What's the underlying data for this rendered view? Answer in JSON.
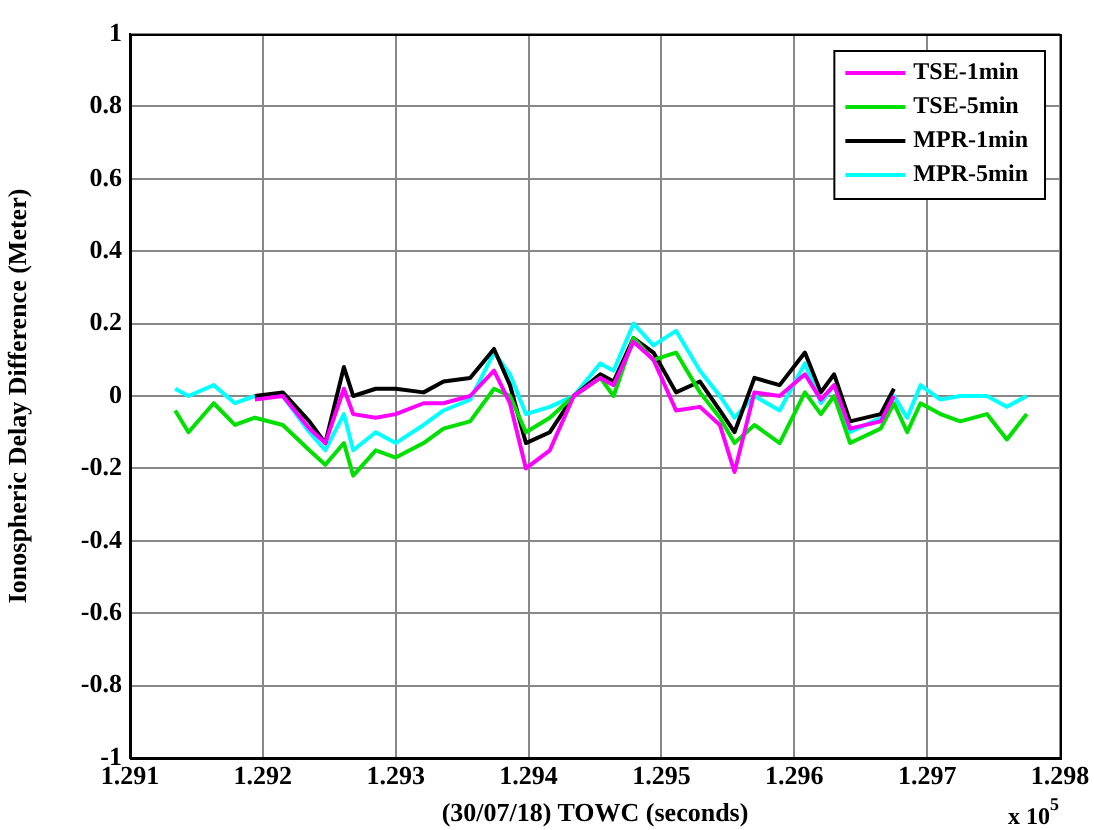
{
  "chart_data": {
    "type": "line",
    "xlabel": "(30/07/18) TOWC (seconds)",
    "ylabel": "Ionospheric Delay Difference (Meter)",
    "annotations": [
      "x 10$^{5}$"
    ],
    "x": [
      1.29134,
      1.29144,
      1.29163,
      1.29179,
      1.29194,
      1.29215,
      1.29235,
      1.29247,
      1.29261,
      1.29268,
      1.29285,
      1.293,
      1.29321,
      1.29336,
      1.29356,
      1.29374,
      1.29386,
      1.29398,
      1.29416,
      1.29434,
      1.29454,
      1.29464,
      1.29479,
      1.29494,
      1.29511,
      1.29529,
      1.29544,
      1.29555,
      1.2957,
      1.29589,
      1.29608,
      1.2962,
      1.2963,
      1.29642,
      1.29665,
      1.29675,
      1.29685,
      1.29695,
      1.2971,
      1.29725,
      1.29745,
      1.2976,
      1.29775
    ],
    "series": [
      {
        "name": "TSE-1min",
        "color": "#ff00ff",
        "values": [
          null,
          null,
          null,
          null,
          -0.01,
          0,
          -0.09,
          -0.13,
          0.02,
          -0.05,
          -0.06,
          -0.05,
          -0.02,
          -0.02,
          0,
          0.07,
          -0.02,
          -0.2,
          -0.15,
          0,
          0.05,
          0.03,
          0.15,
          0.1,
          -0.04,
          -0.03,
          -0.08,
          -0.21,
          0.01,
          0,
          0.06,
          -0.01,
          0.03,
          -0.09,
          -0.07,
          0,
          null,
          null,
          null,
          null,
          null,
          null,
          null
        ]
      },
      {
        "name": "TSE-5min",
        "color": "#00e000",
        "values": [
          -0.04,
          -0.1,
          -0.02,
          -0.08,
          -0.06,
          -0.08,
          -0.15,
          -0.19,
          -0.13,
          -0.22,
          -0.15,
          -0.17,
          -0.13,
          -0.09,
          -0.07,
          0.02,
          0,
          -0.1,
          -0.06,
          0,
          0.05,
          0,
          0.16,
          0.1,
          0.12,
          0.01,
          -0.06,
          -0.13,
          -0.08,
          -0.13,
          0.01,
          -0.05,
          0,
          -0.13,
          -0.09,
          -0.02,
          -0.1,
          -0.02,
          -0.05,
          -0.07,
          -0.05,
          -0.12,
          -0.05
        ]
      },
      {
        "name": "MPR-1min",
        "color": "#000000",
        "values": [
          null,
          null,
          null,
          null,
          0,
          0.01,
          -0.07,
          -0.13,
          0.08,
          0,
          0.02,
          0.02,
          0.01,
          0.04,
          0.05,
          0.13,
          0.03,
          -0.13,
          -0.1,
          0,
          0.06,
          0.04,
          0.16,
          0.12,
          0.01,
          0.04,
          -0.04,
          -0.1,
          0.05,
          0.03,
          0.12,
          0.01,
          0.06,
          -0.07,
          -0.05,
          0.02,
          null,
          null,
          null,
          null,
          null,
          null,
          null
        ]
      },
      {
        "name": "MPR-5min",
        "color": "#00ffff",
        "values": [
          0.02,
          0,
          0.03,
          -0.02,
          0,
          0,
          -0.1,
          -0.15,
          -0.05,
          -0.15,
          -0.1,
          -0.13,
          -0.08,
          -0.04,
          -0.01,
          0.12,
          0.06,
          -0.05,
          -0.03,
          0,
          0.09,
          0.07,
          0.2,
          0.14,
          0.18,
          0.07,
          0,
          -0.06,
          0,
          -0.04,
          0.09,
          -0.02,
          0.03,
          -0.1,
          -0.06,
          0,
          -0.06,
          0.03,
          -0.01,
          0,
          0,
          -0.03,
          0
        ]
      }
    ],
    "xlim": [
      1.291,
      1.298
    ],
    "xticks": [
      1.291,
      1.292,
      1.293,
      1.294,
      1.295,
      1.296,
      1.297,
      1.298
    ],
    "ylim": [
      -1,
      1
    ],
    "yticks": [
      -1,
      -0.8,
      -0.6,
      -0.4,
      -0.2,
      0,
      0.2,
      0.4,
      0.6,
      0.8,
      1
    ],
    "grid": true,
    "legend": "top right",
    "marker": "none",
    "line_style": "solid"
  }
}
